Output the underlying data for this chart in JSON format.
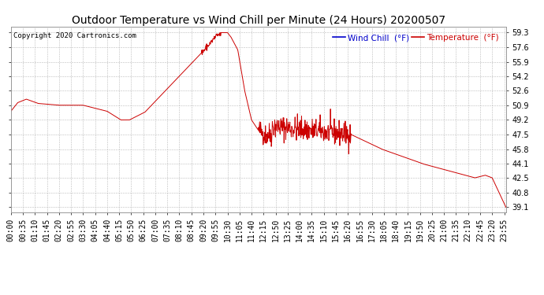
{
  "title": "Outdoor Temperature vs Wind Chill per Minute (24 Hours) 20200507",
  "copyright": "Copyright 2020 Cartronics.com",
  "wind_chill_label": "Wind Chill  (°F)",
  "temp_label": "Temperature  (°F)",
  "wind_chill_color": "#0000cc",
  "temp_color": "#cc0000",
  "line_color": "#cc0000",
  "background_color": "#ffffff",
  "grid_color": "#bbbbbb",
  "yticks": [
    39.1,
    40.8,
    42.5,
    44.1,
    45.8,
    47.5,
    49.2,
    50.9,
    52.6,
    54.2,
    55.9,
    57.6,
    59.3
  ],
  "ymin": 38.5,
  "ymax": 60.0,
  "title_fontsize": 10,
  "tick_fontsize": 7,
  "copyright_fontsize": 6.5,
  "legend_fontsize": 7.5,
  "xtick_interval_min": 35
}
